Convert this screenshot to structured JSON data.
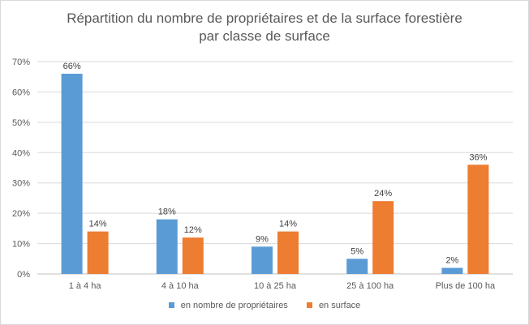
{
  "chart_data": {
    "type": "bar",
    "title_lines": [
      "Répartition du nombre de propriétaires et de la surface forestière",
      "par classe de surface"
    ],
    "categories": [
      "1 à 4 ha",
      "4 à 10 ha",
      "10 à 25 ha",
      "25 à 100 ha",
      "Plus de 100 ha"
    ],
    "series": [
      {
        "name": "en nombre de propriétaires",
        "values": [
          66,
          18,
          9,
          5,
          2
        ],
        "labels": [
          "66%",
          "18%",
          "9%",
          "5%",
          "2%"
        ],
        "color": "#5b9bd5"
      },
      {
        "name": "en surface",
        "values": [
          14,
          12,
          14,
          24,
          36
        ],
        "labels": [
          "14%",
          "12%",
          "14%",
          "24%",
          "36%"
        ],
        "color": "#ed7d31"
      }
    ],
    "y_ticks": [
      "0%",
      "10%",
      "20%",
      "30%",
      "40%",
      "50%",
      "60%",
      "70%"
    ],
    "ylim": [
      0,
      70
    ],
    "grid": true,
    "legend_position": "bottom"
  }
}
